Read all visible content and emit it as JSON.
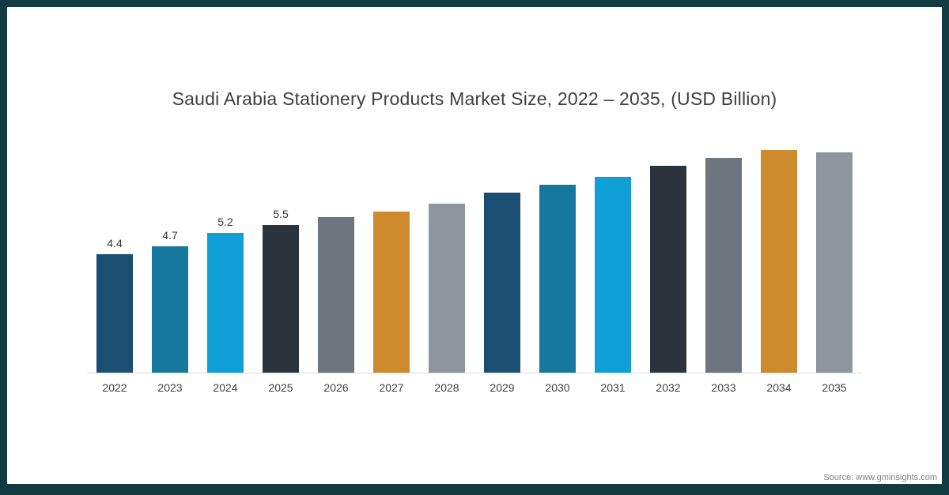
{
  "chart_data": {
    "type": "bar",
    "title": "Saudi Arabia Stationery Products Market Size, 2022 – 2035, (USD Billion)",
    "xlabel": "",
    "ylabel": "",
    "ylim": [
      0,
      9
    ],
    "grid": false,
    "legend": false,
    "categories": [
      "2022",
      "2023",
      "2024",
      "2025",
      "2026",
      "2027",
      "2028",
      "2029",
      "2030",
      "2031",
      "2032",
      "2033",
      "2034",
      "2035"
    ],
    "values": [
      4.4,
      4.7,
      5.2,
      5.5,
      5.8,
      6.0,
      6.3,
      6.7,
      7.0,
      7.3,
      7.7,
      8.0,
      8.3,
      8.2
    ],
    "data_labels": [
      "4.4",
      "4.7",
      "5.2",
      "5.5",
      "",
      "",
      "",
      "",
      "",
      "",
      "",
      "",
      "",
      ""
    ],
    "bar_colors": [
      "#1a4e73",
      "#16789c",
      "#0f9ed5",
      "#2b333c",
      "#6d767e",
      "#cd8b2d",
      "#8d959d",
      "#1a4e73",
      "#16789c",
      "#0f9ed5",
      "#2b333c",
      "#6d767e",
      "#cd8b2d",
      "#8d959d"
    ]
  },
  "footer": {
    "source": "Source: www.gminsights.com"
  },
  "colors": {
    "frame": "#113b41",
    "title_text": "#404040",
    "axis_text": "#404040",
    "baseline": "#d9d9d9",
    "source_text": "#7f7f7f"
  }
}
